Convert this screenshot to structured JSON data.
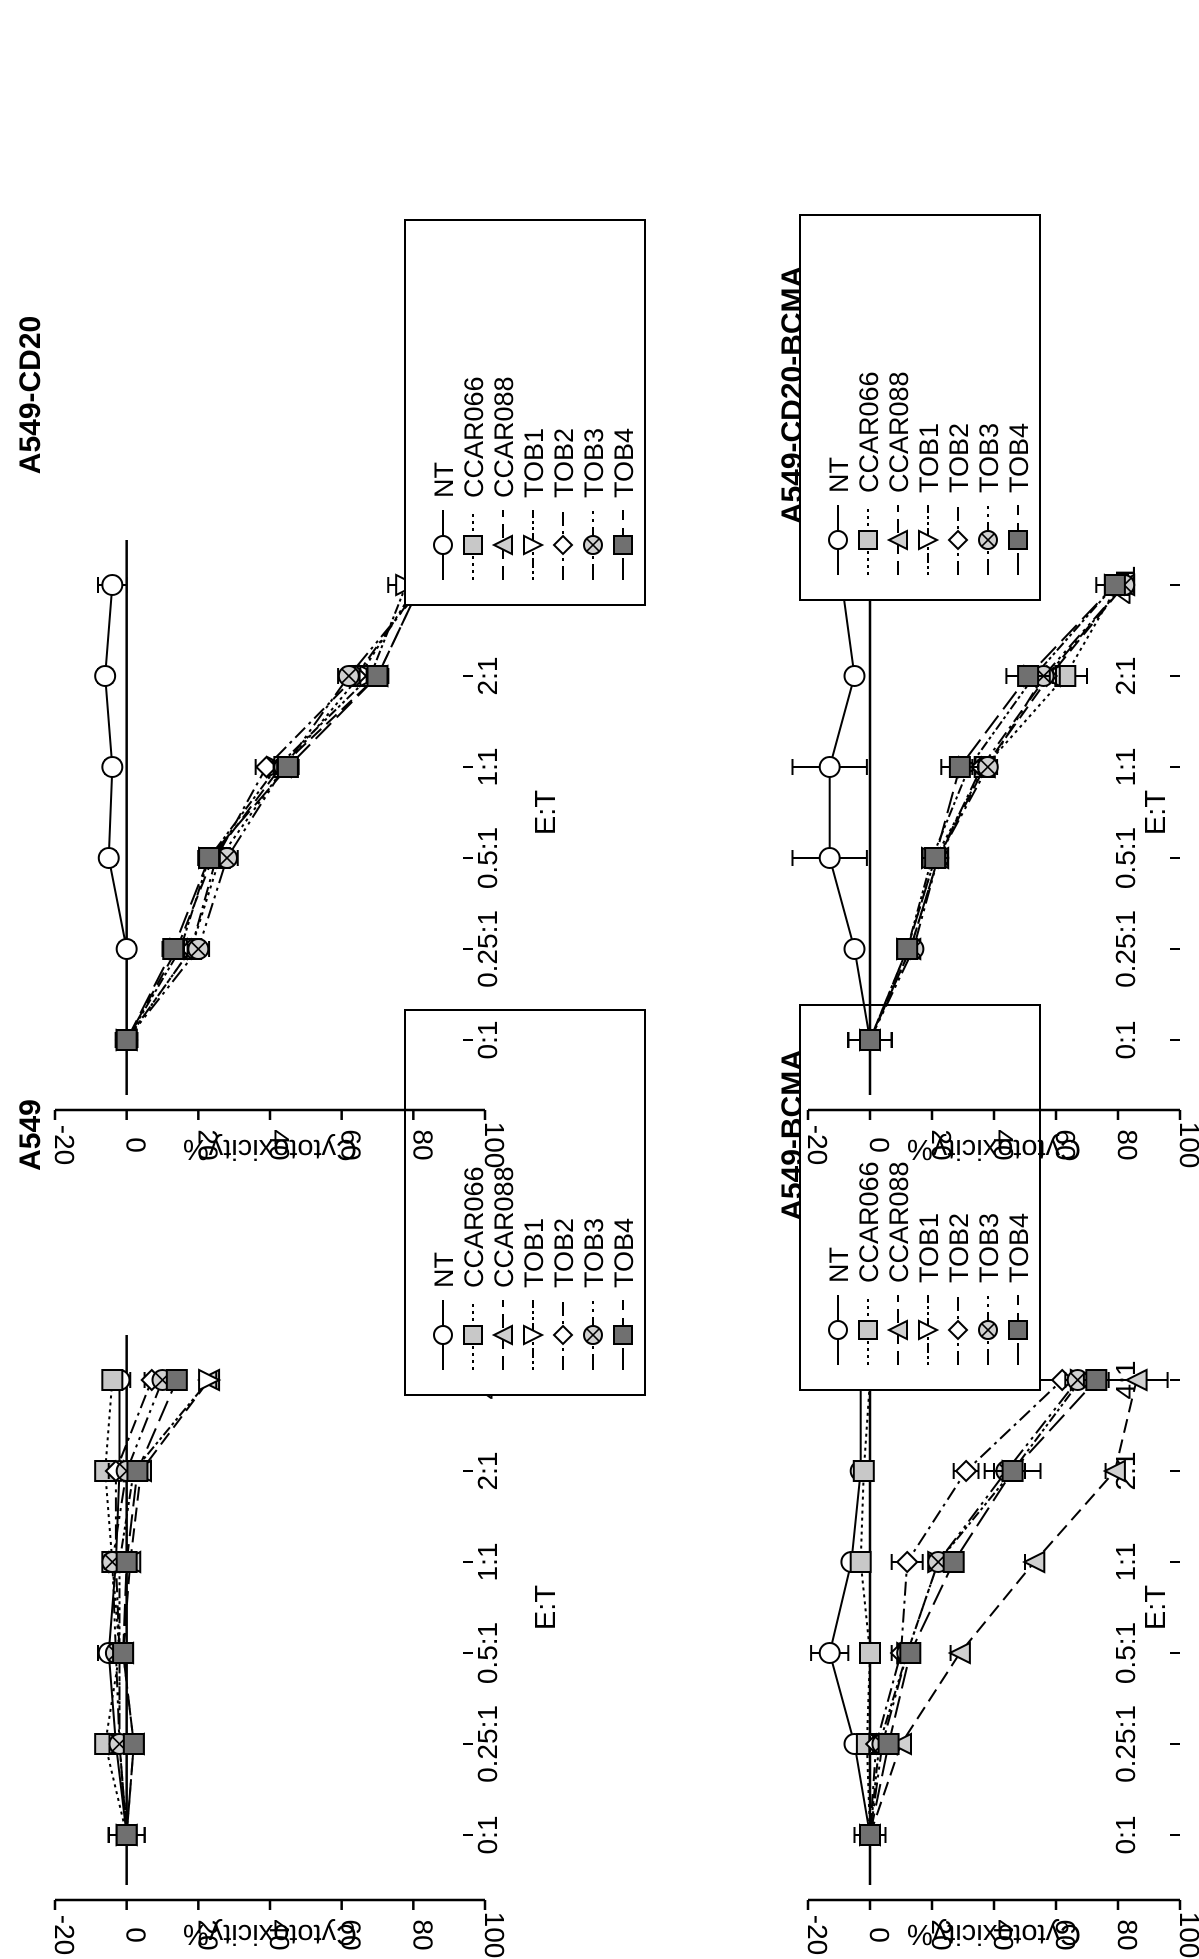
{
  "chart_data": [
    {
      "type": "line",
      "title": "A549",
      "xlabel": "E:T",
      "ylabel": "Cytotoxicity%",
      "categories": [
        "0:1",
        "0.25:1",
        "0.5:1",
        "1:1",
        "2:1",
        "4:1"
      ],
      "yticks": [
        "100",
        "80",
        "60",
        "40",
        "20",
        "0",
        "-20"
      ],
      "ylim": [
        -20,
        100
      ],
      "legend_placement": "right",
      "series": [
        {
          "name": "NT",
          "values": [
            0,
            -3,
            -5,
            -3,
            -2,
            -2
          ],
          "errors": [
            5,
            2,
            3,
            2,
            2,
            3
          ]
        },
        {
          "name": "CCAR066",
          "values": [
            0,
            -6,
            -2,
            -4,
            -6,
            -4
          ],
          "errors": [
            5,
            2,
            2,
            2,
            2,
            2
          ]
        },
        {
          "name": "CCAR088",
          "values": [
            0,
            2,
            -1,
            1,
            4,
            23
          ],
          "errors": [
            5,
            2,
            2,
            2,
            2,
            2
          ]
        },
        {
          "name": "TOB1",
          "values": [
            0,
            -2,
            -2,
            -2,
            2,
            23
          ],
          "errors": [
            5,
            2,
            2,
            2,
            2,
            2
          ]
        },
        {
          "name": "TOB2",
          "values": [
            0,
            -2,
            -2,
            -3,
            -3,
            7
          ],
          "errors": [
            5,
            2,
            2,
            2,
            2,
            2
          ]
        },
        {
          "name": "TOB3",
          "values": [
            0,
            -2,
            -3,
            -4,
            0,
            10
          ],
          "errors": [
            5,
            2,
            2,
            2,
            2,
            2
          ]
        },
        {
          "name": "TOB4",
          "values": [
            0,
            2,
            -1,
            0,
            3,
            14
          ],
          "errors": [
            5,
            2,
            2,
            2,
            2,
            2
          ]
        }
      ]
    },
    {
      "type": "line",
      "title": "A549-CD20",
      "xlabel": "E:T",
      "ylabel": "Cytotoxicity%",
      "categories": [
        "0:1",
        "0.25:1",
        "0.5:1",
        "1:1",
        "2:1",
        "4:1"
      ],
      "yticks": [
        "100",
        "80",
        "60",
        "40",
        "20",
        "0",
        "-20"
      ],
      "ylim": [
        -20,
        100
      ],
      "legend_placement": "right",
      "series": [
        {
          "name": "NT",
          "values": [
            0,
            0,
            -5,
            -4,
            -6,
            -4
          ],
          "errors": [
            3,
            2,
            2,
            2,
            2,
            4
          ]
        },
        {
          "name": "CCAR066",
          "values": [
            0,
            18,
            26,
            44,
            65,
            81
          ],
          "errors": [
            3,
            3,
            3,
            3,
            3,
            2
          ]
        },
        {
          "name": "CCAR088",
          "values": [
            0,
            14,
            24,
            43,
            70,
            82
          ],
          "errors": [
            3,
            3,
            3,
            3,
            3,
            2
          ]
        },
        {
          "name": "TOB1",
          "values": [
            0,
            15,
            23,
            42,
            68,
            78
          ],
          "errors": [
            3,
            3,
            3,
            3,
            3,
            5
          ]
        },
        {
          "name": "TOB2",
          "values": [
            0,
            18,
            25,
            39,
            64,
            82
          ],
          "errors": [
            3,
            3,
            3,
            3,
            3,
            2
          ]
        },
        {
          "name": "TOB3",
          "values": [
            0,
            20,
            28,
            44,
            62,
            83
          ],
          "errors": [
            3,
            3,
            3,
            3,
            3,
            2
          ]
        },
        {
          "name": "TOB4",
          "values": [
            0,
            13,
            23,
            45,
            70,
            82
          ],
          "errors": [
            3,
            3,
            3,
            3,
            3,
            2
          ]
        }
      ]
    },
    {
      "type": "line",
      "title": "A549-BCMA",
      "xlabel": "E:T",
      "ylabel": "Cytotoxicity%",
      "categories": [
        "0:1",
        "0.25:1",
        "0.5:1",
        "1:1",
        "2:1",
        "4:1"
      ],
      "yticks": [
        "100",
        "80",
        "60",
        "40",
        "20",
        "0",
        "-20"
      ],
      "ylim": [
        -20,
        100
      ],
      "legend_placement": "right",
      "series": [
        {
          "name": "NT",
          "values": [
            0,
            -5,
            -13,
            -6,
            -3,
            -3
          ],
          "errors": [
            5,
            2,
            6,
            2,
            2,
            2
          ]
        },
        {
          "name": "CCAR066",
          "values": [
            0,
            -1,
            0,
            -3,
            -2,
            0
          ],
          "errors": [
            5,
            2,
            2,
            2,
            2,
            2
          ]
        },
        {
          "name": "CCAR088",
          "values": [
            0,
            10,
            29,
            53,
            79,
            86
          ],
          "errors": [
            5,
            3,
            3,
            3,
            3,
            10
          ]
        },
        {
          "name": "TOB1",
          "values": [
            0,
            3,
            12,
            22,
            46,
            68
          ],
          "errors": [
            5,
            2,
            3,
            3,
            4,
            3
          ]
        },
        {
          "name": "TOB2",
          "values": [
            0,
            2,
            10,
            12,
            31,
            62
          ],
          "errors": [
            5,
            2,
            3,
            5,
            4,
            12
          ]
        },
        {
          "name": "TOB3",
          "values": [
            0,
            4,
            12,
            22,
            44,
            67
          ],
          "errors": [
            5,
            2,
            3,
            3,
            4,
            4
          ]
        },
        {
          "name": "TOB4",
          "values": [
            0,
            6,
            13,
            27,
            46,
            73
          ],
          "errors": [
            5,
            2,
            3,
            3,
            9,
            4
          ]
        }
      ]
    },
    {
      "type": "line",
      "title": "A549-CD20-BCMA",
      "xlabel": "E:T",
      "ylabel": "Cytotoxicity%",
      "categories": [
        "0:1",
        "0.25:1",
        "0.5:1",
        "1:1",
        "2:1",
        "4:1"
      ],
      "yticks": [
        "100",
        "80",
        "60",
        "40",
        "20",
        "0",
        "-20"
      ],
      "ylim": [
        -20,
        100
      ],
      "legend_placement": "right",
      "series": [
        {
          "name": "NT",
          "values": [
            0,
            -5,
            -13,
            -13,
            -5,
            -9
          ],
          "errors": [
            7,
            2,
            12,
            12,
            2,
            4
          ]
        },
        {
          "name": "CCAR066",
          "values": [
            0,
            12,
            21,
            37,
            63,
            80
          ],
          "errors": [
            7,
            2,
            3,
            3,
            7,
            2
          ]
        },
        {
          "name": "CCAR088",
          "values": [
            0,
            13,
            22,
            37,
            58,
            82
          ],
          "errors": [
            7,
            2,
            3,
            3,
            3,
            2
          ]
        },
        {
          "name": "TOB1",
          "values": [
            0,
            12,
            20,
            32,
            53,
            79
          ],
          "errors": [
            7,
            2,
            3,
            3,
            3,
            6
          ]
        },
        {
          "name": "TOB2",
          "values": [
            0,
            13,
            22,
            36,
            57,
            82
          ],
          "errors": [
            7,
            2,
            3,
            3,
            3,
            2
          ]
        },
        {
          "name": "TOB3",
          "values": [
            0,
            14,
            22,
            38,
            56,
            82
          ],
          "errors": [
            7,
            2,
            3,
            3,
            3,
            2
          ]
        },
        {
          "name": "TOB4",
          "values": [
            0,
            12,
            21,
            29,
            51,
            79
          ],
          "errors": [
            7,
            3,
            4,
            6,
            7,
            2
          ]
        }
      ]
    }
  ]
}
